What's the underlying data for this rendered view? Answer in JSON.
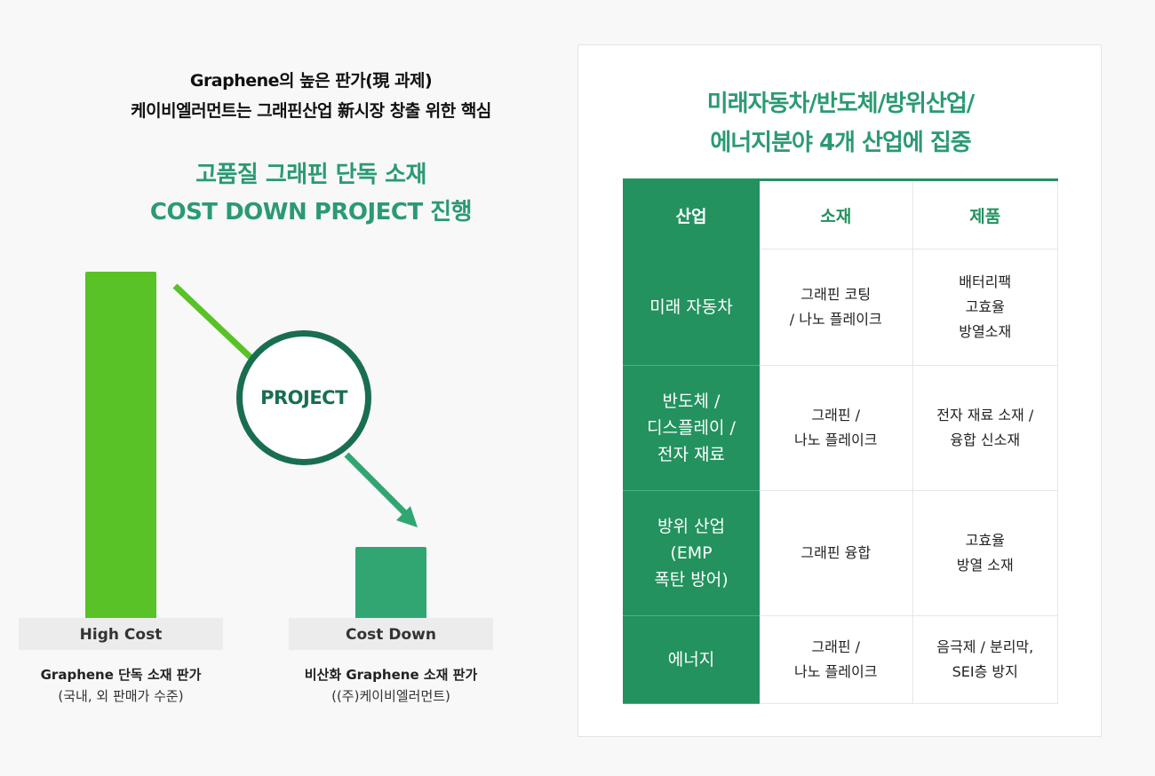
{
  "intro": {
    "line1": "Graphene의 높은 판가(現 과제)",
    "line2": "케이비엘러먼트는 그래핀산업 新시장 창출 위한 핵심"
  },
  "headline": {
    "line1": "고품질 그래핀 단독 소재",
    "line2": "COST DOWN PROJECT 진행"
  },
  "diagram": {
    "center_label": "PROJECT",
    "high": {
      "label": "High Cost",
      "caption": "Graphene 단독 소재 판가",
      "subcaption": "(국내, 외 판매가 수준)",
      "color": "#58c226"
    },
    "low": {
      "label": "Cost Down",
      "caption": "비산화 Graphene 소재 판가",
      "subcaption": "((주)케이비엘러먼트)",
      "color": "#31a672"
    },
    "ring_color": "#196e52"
  },
  "panel": {
    "title_line1": "미래자동차/반도체/방위산업/",
    "title_line2": "에너지분야 4개 산업에 집중",
    "headers": [
      "산업",
      "소재",
      "제품"
    ],
    "rows": [
      {
        "industry": "미래 자동차",
        "material": "그래핀 코팅\n/ 나노 플레이크",
        "product": "배터리팩\n고효율\n방열소재"
      },
      {
        "industry": "반도체 /\n디스플레이 /\n전자 재료",
        "material": "그래핀 /\n나노 플레이크",
        "product": "전자 재료 소재 /\n융합 신소재"
      },
      {
        "industry": "방위 산업\n(EMP\n폭탄 방어)",
        "material": "그래핀 융합",
        "product": "고효율\n방열 소재"
      },
      {
        "industry": "에너지",
        "material": "그래핀 /\n나노 플레이크",
        "product": "음극제 / 분리막,\nSEI층 방지"
      }
    ],
    "accent_color": "#23925f"
  }
}
